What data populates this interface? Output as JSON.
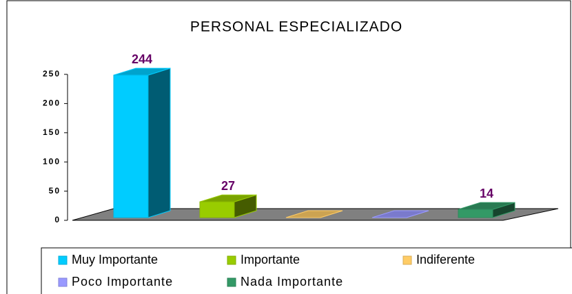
{
  "chart_data": {
    "type": "bar3d",
    "title": "PERSONAL ESPECIALIZADO",
    "series": [
      {
        "name": "Muy Importante",
        "color": "#00ccff",
        "values": [
          244
        ]
      },
      {
        "name": "Importante",
        "color": "#99cc00",
        "values": [
          27
        ]
      },
      {
        "name": "Indiferente",
        "color": "#ffcc66",
        "values": [
          0
        ]
      },
      {
        "name": "Poco Importante",
        "color": "#9999ff",
        "values": [
          0
        ]
      },
      {
        "name": "Nada Importante",
        "color": "#339966",
        "values": [
          14
        ]
      }
    ],
    "ylim": [
      0,
      250
    ],
    "yticks": [
      0,
      50,
      100,
      150,
      200,
      250
    ],
    "grid": false,
    "legend": "bottom"
  }
}
